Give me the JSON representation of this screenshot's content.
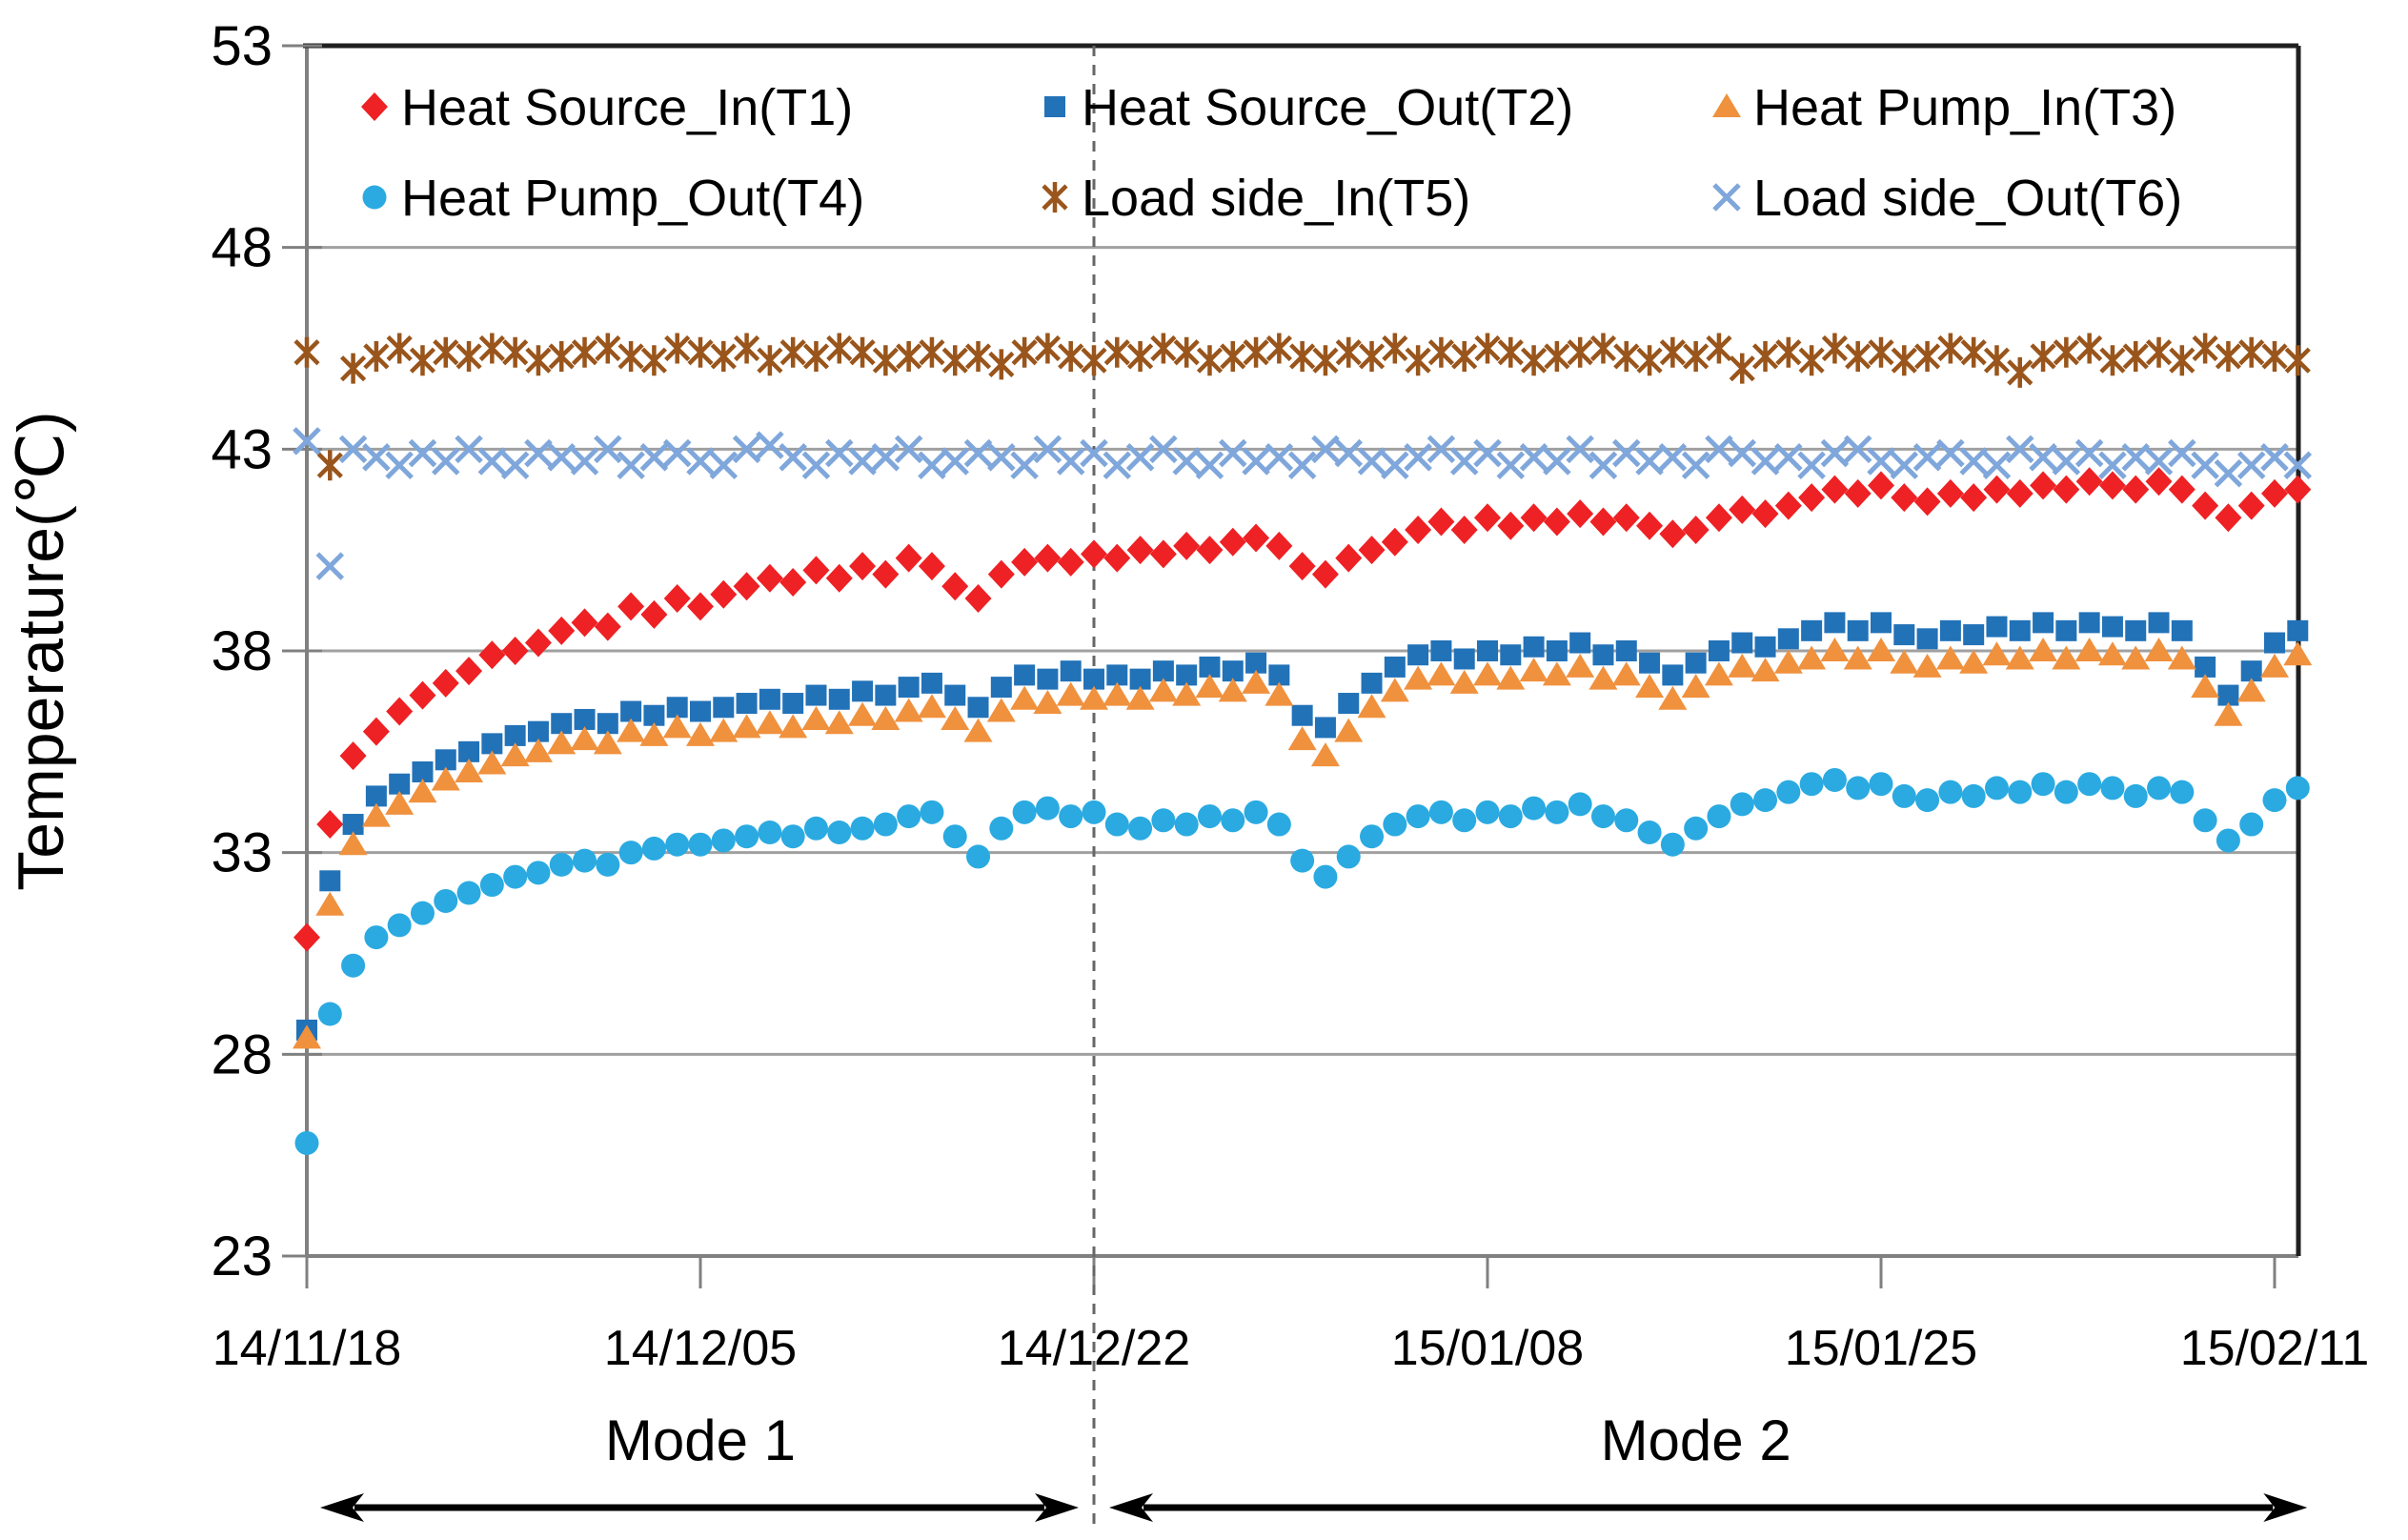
{
  "figure": {
    "background": "#ffffff",
    "y_axis_title": "Temperature(℃)",
    "mode1_label": "Mode 1",
    "mode2_label": "Mode 2"
  },
  "chart_data": {
    "type": "scatter",
    "title": "",
    "xlabel": "",
    "ylabel": "Temperature(℃)",
    "ylim": [
      23,
      53
    ],
    "y_ticks": [
      53,
      48,
      43,
      38,
      33,
      28,
      23
    ],
    "x_tick_labels": [
      "14/11/18",
      "14/12/05",
      "14/12/22",
      "15/01/08",
      "15/01/25",
      "15/02/11"
    ],
    "x_tick_days": [
      0,
      17,
      34,
      51,
      68,
      85
    ],
    "x_day_range": [
      0,
      86
    ],
    "grid": "horizontal-gridlines-on",
    "legend_position": "inside-top-left, 2 rows x 3 cols",
    "divider_day": 34,
    "modes": [
      {
        "label": "Mode 1",
        "day_start": 0,
        "day_end": 34
      },
      {
        "label": "Mode 2",
        "day_start": 34,
        "day_end": 86
      }
    ],
    "colors": {
      "grid": "#a0a0a0",
      "axis_gray": "#808080",
      "border_dark": "#1f1f1f",
      "divider": "#666666",
      "arrow": "#000000"
    },
    "series": [
      {
        "name": "Heat Source_In(T1)",
        "marker": "diamond",
        "color": "#ee2124",
        "values": [
          30.9,
          33.7,
          35.4,
          36.0,
          36.5,
          36.9,
          37.2,
          37.5,
          37.9,
          38.0,
          38.2,
          38.5,
          38.7,
          38.6,
          39.1,
          38.9,
          39.3,
          39.1,
          39.4,
          39.6,
          39.8,
          39.7,
          40.0,
          39.8,
          40.1,
          39.9,
          40.3,
          40.1,
          39.6,
          39.3,
          39.9,
          40.2,
          40.3,
          40.2,
          40.4,
          40.3,
          40.5,
          40.4,
          40.6,
          40.5,
          40.7,
          40.8,
          40.6,
          40.1,
          39.9,
          40.3,
          40.5,
          40.7,
          41.0,
          41.2,
          41.0,
          41.3,
          41.1,
          41.3,
          41.2,
          41.4,
          41.2,
          41.3,
          41.1,
          40.9,
          41.0,
          41.3,
          41.5,
          41.4,
          41.6,
          41.8,
          42.0,
          41.9,
          42.1,
          41.8,
          41.7,
          41.9,
          41.8,
          42.0,
          41.9,
          42.1,
          42.0,
          42.2,
          42.1,
          42.0,
          42.2,
          42.0,
          41.6,
          41.3,
          41.6,
          41.9,
          42.0
        ]
      },
      {
        "name": "Heat Source_Out(T2)",
        "marker": "square",
        "color": "#2272b8",
        "values": [
          28.6,
          32.3,
          33.7,
          34.4,
          34.7,
          35.0,
          35.3,
          35.5,
          35.7,
          35.9,
          36.0,
          36.2,
          36.3,
          36.2,
          36.5,
          36.4,
          36.6,
          36.5,
          36.6,
          36.7,
          36.8,
          36.7,
          36.9,
          36.8,
          37.0,
          36.9,
          37.1,
          37.2,
          36.9,
          36.6,
          37.1,
          37.4,
          37.3,
          37.5,
          37.3,
          37.4,
          37.3,
          37.5,
          37.4,
          37.6,
          37.5,
          37.7,
          37.4,
          36.4,
          36.1,
          36.7,
          37.2,
          37.6,
          37.9,
          38.0,
          37.8,
          38.0,
          37.9,
          38.1,
          38.0,
          38.2,
          37.9,
          38.0,
          37.7,
          37.4,
          37.7,
          38.0,
          38.2,
          38.1,
          38.3,
          38.5,
          38.7,
          38.5,
          38.7,
          38.4,
          38.3,
          38.5,
          38.4,
          38.6,
          38.5,
          38.7,
          38.5,
          38.7,
          38.6,
          38.5,
          38.7,
          38.5,
          37.6,
          36.9,
          37.5,
          38.2,
          38.5
        ]
      },
      {
        "name": "Heat Pump_In(T3)",
        "marker": "triangle",
        "color": "#f0913e",
        "values": [
          28.4,
          31.7,
          33.2,
          33.9,
          34.2,
          34.5,
          34.8,
          35.0,
          35.2,
          35.4,
          35.5,
          35.7,
          35.8,
          35.7,
          36.0,
          35.9,
          36.1,
          35.9,
          36.0,
          36.1,
          36.2,
          36.1,
          36.3,
          36.2,
          36.4,
          36.3,
          36.5,
          36.6,
          36.3,
          36.0,
          36.5,
          36.8,
          36.7,
          36.9,
          36.8,
          36.9,
          36.8,
          37.0,
          36.9,
          37.1,
          37.0,
          37.2,
          36.9,
          35.8,
          35.4,
          36.0,
          36.6,
          37.0,
          37.3,
          37.4,
          37.2,
          37.4,
          37.3,
          37.5,
          37.4,
          37.6,
          37.3,
          37.4,
          37.1,
          36.8,
          37.1,
          37.4,
          37.6,
          37.5,
          37.7,
          37.8,
          38.0,
          37.8,
          38.0,
          37.7,
          37.6,
          37.8,
          37.7,
          37.9,
          37.8,
          38.0,
          37.8,
          38.0,
          37.9,
          37.8,
          38.0,
          37.8,
          37.1,
          36.4,
          37.0,
          37.6,
          37.9
        ]
      },
      {
        "name": "Heat Pump_Out(T4)",
        "marker": "circle",
        "color": "#2aaae1",
        "values": [
          25.8,
          29.0,
          30.2,
          30.9,
          31.2,
          31.5,
          31.8,
          32.0,
          32.2,
          32.4,
          32.5,
          32.7,
          32.8,
          32.7,
          33.0,
          33.1,
          33.2,
          33.2,
          33.3,
          33.4,
          33.5,
          33.4,
          33.6,
          33.5,
          33.6,
          33.7,
          33.9,
          34.0,
          33.4,
          32.9,
          33.6,
          34.0,
          34.1,
          33.9,
          34.0,
          33.7,
          33.6,
          33.8,
          33.7,
          33.9,
          33.8,
          34.0,
          33.7,
          32.8,
          32.4,
          32.9,
          33.4,
          33.7,
          33.9,
          34.0,
          33.8,
          34.0,
          33.9,
          34.1,
          34.0,
          34.2,
          33.9,
          33.8,
          33.5,
          33.2,
          33.6,
          33.9,
          34.2,
          34.3,
          34.5,
          34.7,
          34.8,
          34.6,
          34.7,
          34.4,
          34.3,
          34.5,
          34.4,
          34.6,
          34.5,
          34.7,
          34.5,
          34.7,
          34.6,
          34.4,
          34.6,
          34.5,
          33.8,
          33.3,
          33.7,
          34.3,
          34.6
        ]
      },
      {
        "name": "Load side_In(T5)",
        "marker": "asterisk",
        "color": "#99551b",
        "values": [
          45.4,
          42.6,
          45.0,
          45.3,
          45.5,
          45.2,
          45.4,
          45.3,
          45.5,
          45.4,
          45.2,
          45.3,
          45.4,
          45.5,
          45.3,
          45.2,
          45.5,
          45.4,
          45.3,
          45.5,
          45.2,
          45.4,
          45.3,
          45.5,
          45.4,
          45.2,
          45.3,
          45.4,
          45.2,
          45.3,
          45.1,
          45.4,
          45.5,
          45.3,
          45.2,
          45.4,
          45.3,
          45.5,
          45.4,
          45.2,
          45.3,
          45.4,
          45.5,
          45.3,
          45.2,
          45.4,
          45.3,
          45.5,
          45.2,
          45.4,
          45.3,
          45.5,
          45.4,
          45.2,
          45.3,
          45.4,
          45.5,
          45.3,
          45.2,
          45.4,
          45.3,
          45.5,
          45.0,
          45.3,
          45.4,
          45.2,
          45.5,
          45.3,
          45.4,
          45.2,
          45.3,
          45.5,
          45.4,
          45.2,
          44.9,
          45.3,
          45.4,
          45.5,
          45.2,
          45.3,
          45.4,
          45.2,
          45.5,
          45.3,
          45.4,
          45.3,
          45.2
        ]
      },
      {
        "name": "Load side_Out(T6)",
        "marker": "x",
        "color": "#7fa7db",
        "values": [
          43.2,
          40.1,
          43.0,
          42.8,
          42.6,
          42.9,
          42.7,
          43.0,
          42.7,
          42.6,
          42.9,
          42.8,
          42.7,
          43.0,
          42.6,
          42.8,
          42.9,
          42.7,
          42.6,
          43.0,
          43.1,
          42.8,
          42.6,
          42.9,
          42.7,
          42.8,
          43.0,
          42.6,
          42.7,
          42.9,
          42.8,
          42.6,
          43.0,
          42.7,
          42.9,
          42.6,
          42.8,
          43.0,
          42.7,
          42.6,
          42.9,
          42.7,
          42.8,
          42.6,
          43.0,
          42.9,
          42.7,
          42.6,
          42.8,
          43.0,
          42.7,
          42.9,
          42.6,
          42.8,
          42.7,
          43.0,
          42.6,
          42.9,
          42.7,
          42.8,
          42.6,
          43.0,
          42.9,
          42.7,
          42.8,
          42.6,
          42.9,
          43.0,
          42.7,
          42.6,
          42.8,
          42.9,
          42.7,
          42.6,
          43.0,
          42.8,
          42.7,
          42.9,
          42.6,
          42.8,
          42.7,
          42.9,
          42.6,
          42.4,
          42.6,
          42.8,
          42.6
        ]
      }
    ]
  },
  "layout_note_values_are_daily": "series values are daily samples, day 0 = 14/11/18 through day 86"
}
